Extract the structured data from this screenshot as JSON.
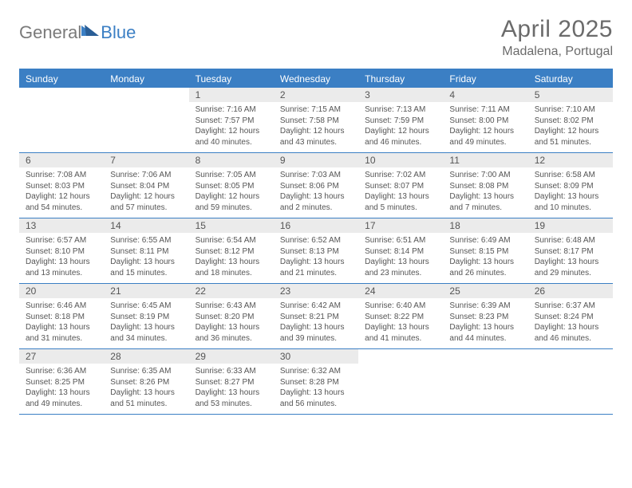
{
  "brand": {
    "part1": "General",
    "part2": "Blue"
  },
  "title": "April 2025",
  "location": "Madalena, Portugal",
  "colors": {
    "accent": "#3b7fc4",
    "header_bg": "#ebebeb",
    "text": "#555555",
    "bg": "#ffffff"
  },
  "dayNames": [
    "Sunday",
    "Monday",
    "Tuesday",
    "Wednesday",
    "Thursday",
    "Friday",
    "Saturday"
  ],
  "weeks": [
    [
      null,
      null,
      {
        "n": "1",
        "sr": "7:16 AM",
        "ss": "7:57 PM",
        "dl": "12 hours and 40 minutes."
      },
      {
        "n": "2",
        "sr": "7:15 AM",
        "ss": "7:58 PM",
        "dl": "12 hours and 43 minutes."
      },
      {
        "n": "3",
        "sr": "7:13 AM",
        "ss": "7:59 PM",
        "dl": "12 hours and 46 minutes."
      },
      {
        "n": "4",
        "sr": "7:11 AM",
        "ss": "8:00 PM",
        "dl": "12 hours and 49 minutes."
      },
      {
        "n": "5",
        "sr": "7:10 AM",
        "ss": "8:02 PM",
        "dl": "12 hours and 51 minutes."
      }
    ],
    [
      {
        "n": "6",
        "sr": "7:08 AM",
        "ss": "8:03 PM",
        "dl": "12 hours and 54 minutes."
      },
      {
        "n": "7",
        "sr": "7:06 AM",
        "ss": "8:04 PM",
        "dl": "12 hours and 57 minutes."
      },
      {
        "n": "8",
        "sr": "7:05 AM",
        "ss": "8:05 PM",
        "dl": "12 hours and 59 minutes."
      },
      {
        "n": "9",
        "sr": "7:03 AM",
        "ss": "8:06 PM",
        "dl": "13 hours and 2 minutes."
      },
      {
        "n": "10",
        "sr": "7:02 AM",
        "ss": "8:07 PM",
        "dl": "13 hours and 5 minutes."
      },
      {
        "n": "11",
        "sr": "7:00 AM",
        "ss": "8:08 PM",
        "dl": "13 hours and 7 minutes."
      },
      {
        "n": "12",
        "sr": "6:58 AM",
        "ss": "8:09 PM",
        "dl": "13 hours and 10 minutes."
      }
    ],
    [
      {
        "n": "13",
        "sr": "6:57 AM",
        "ss": "8:10 PM",
        "dl": "13 hours and 13 minutes."
      },
      {
        "n": "14",
        "sr": "6:55 AM",
        "ss": "8:11 PM",
        "dl": "13 hours and 15 minutes."
      },
      {
        "n": "15",
        "sr": "6:54 AM",
        "ss": "8:12 PM",
        "dl": "13 hours and 18 minutes."
      },
      {
        "n": "16",
        "sr": "6:52 AM",
        "ss": "8:13 PM",
        "dl": "13 hours and 21 minutes."
      },
      {
        "n": "17",
        "sr": "6:51 AM",
        "ss": "8:14 PM",
        "dl": "13 hours and 23 minutes."
      },
      {
        "n": "18",
        "sr": "6:49 AM",
        "ss": "8:15 PM",
        "dl": "13 hours and 26 minutes."
      },
      {
        "n": "19",
        "sr": "6:48 AM",
        "ss": "8:17 PM",
        "dl": "13 hours and 29 minutes."
      }
    ],
    [
      {
        "n": "20",
        "sr": "6:46 AM",
        "ss": "8:18 PM",
        "dl": "13 hours and 31 minutes."
      },
      {
        "n": "21",
        "sr": "6:45 AM",
        "ss": "8:19 PM",
        "dl": "13 hours and 34 minutes."
      },
      {
        "n": "22",
        "sr": "6:43 AM",
        "ss": "8:20 PM",
        "dl": "13 hours and 36 minutes."
      },
      {
        "n": "23",
        "sr": "6:42 AM",
        "ss": "8:21 PM",
        "dl": "13 hours and 39 minutes."
      },
      {
        "n": "24",
        "sr": "6:40 AM",
        "ss": "8:22 PM",
        "dl": "13 hours and 41 minutes."
      },
      {
        "n": "25",
        "sr": "6:39 AM",
        "ss": "8:23 PM",
        "dl": "13 hours and 44 minutes."
      },
      {
        "n": "26",
        "sr": "6:37 AM",
        "ss": "8:24 PM",
        "dl": "13 hours and 46 minutes."
      }
    ],
    [
      {
        "n": "27",
        "sr": "6:36 AM",
        "ss": "8:25 PM",
        "dl": "13 hours and 49 minutes."
      },
      {
        "n": "28",
        "sr": "6:35 AM",
        "ss": "8:26 PM",
        "dl": "13 hours and 51 minutes."
      },
      {
        "n": "29",
        "sr": "6:33 AM",
        "ss": "8:27 PM",
        "dl": "13 hours and 53 minutes."
      },
      {
        "n": "30",
        "sr": "6:32 AM",
        "ss": "8:28 PM",
        "dl": "13 hours and 56 minutes."
      },
      null,
      null,
      null
    ]
  ]
}
